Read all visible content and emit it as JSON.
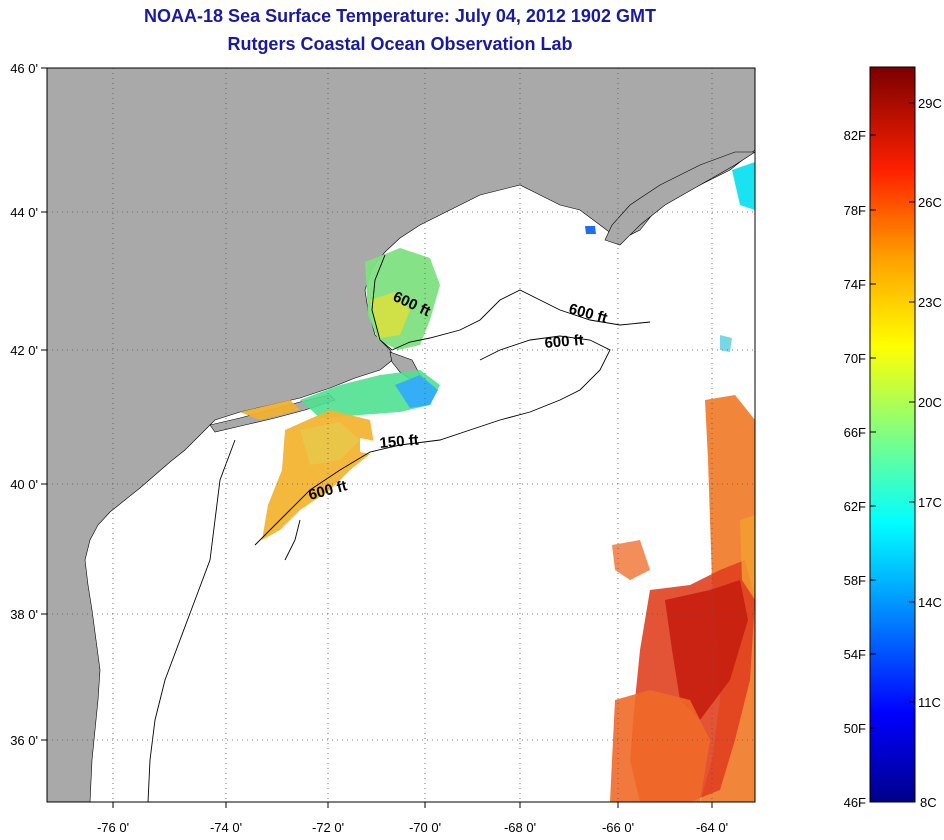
{
  "title": {
    "line1": "NOAA-18 Sea Surface Temperature:  July 04, 2012 1902 GMT",
    "line2": "Rutgers Coastal Ocean Observation Lab"
  },
  "map": {
    "lon_ticks": [
      "-76 0'",
      "-74 0'",
      "-72 0'",
      "-70 0'",
      "-68 0'",
      "-66 0'",
      "-64 0'"
    ],
    "lat_ticks": [
      "46 0'",
      "44 0'",
      "42 0'",
      "40 0'",
      "38 0'",
      "36 0'"
    ],
    "contour_labels": [
      "600 ft",
      "600 ft",
      "600 ft",
      "150 ft",
      "600 ft"
    ],
    "land_color": "#a9a9a9",
    "ocean_color": "#ffffff"
  },
  "colorbar": {
    "fahrenheit": [
      "82F",
      "78F",
      "74F",
      "70F",
      "66F",
      "62F",
      "58F",
      "54F",
      "50F",
      "46F"
    ],
    "celsius": [
      "29C",
      "26C",
      "23C",
      "20C",
      "17C",
      "14C",
      "11C",
      "8C"
    ],
    "colors": [
      "#000080",
      "#0000ff",
      "#00aaff",
      "#00ffff",
      "#7fff7f",
      "#ffff00",
      "#ffaa00",
      "#ff3300",
      "#a00000",
      "#800000"
    ]
  }
}
